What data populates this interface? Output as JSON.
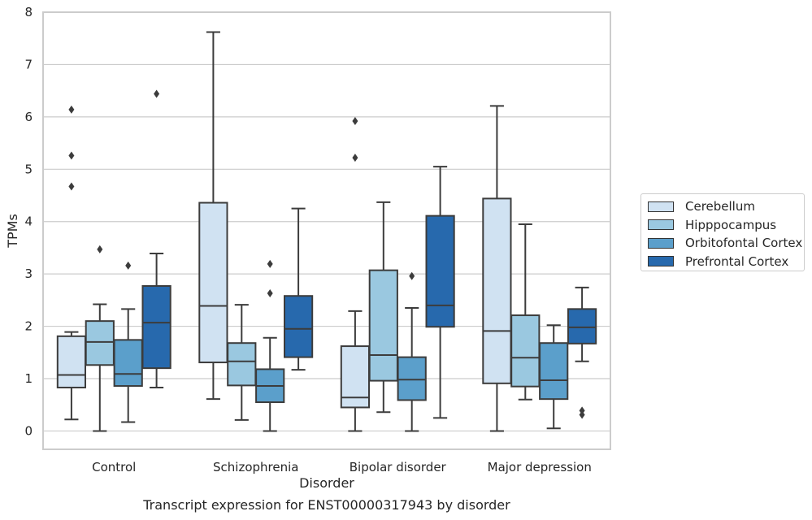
{
  "chart_data": {
    "type": "boxplot",
    "title": "",
    "caption": "Transcript expression for ENST00000317943 by disorder",
    "xlabel": "Disorder",
    "ylabel": "TPMs",
    "ylim": [
      -0.35,
      8.0
    ],
    "yticks": [
      0,
      1,
      2,
      3,
      4,
      5,
      6,
      7,
      8
    ],
    "grid": "horizontal",
    "legend_position": "right",
    "categories": [
      "Control",
      "Schizophrenia",
      "Bipolar disorder",
      "Major depression"
    ],
    "series": [
      {
        "name": "Cerebellum",
        "color": "#d0e2f2",
        "boxes": [
          {
            "whislo": 0.22,
            "q1": 0.83,
            "med": 1.07,
            "q3": 1.81,
            "whishi": 1.89,
            "fliers": [
              4.67,
              5.26,
              6.14
            ]
          },
          {
            "whislo": 0.61,
            "q1": 1.31,
            "med": 2.39,
            "q3": 4.36,
            "whishi": 7.62,
            "fliers": []
          },
          {
            "whislo": 0.0,
            "q1": 0.45,
            "med": 0.64,
            "q3": 1.62,
            "whishi": 2.29,
            "fliers": [
              5.22,
              5.92
            ]
          },
          {
            "whislo": 0.0,
            "q1": 0.91,
            "med": 1.91,
            "q3": 4.44,
            "whishi": 6.21,
            "fliers": []
          }
        ]
      },
      {
        "name": "Hipppocampus",
        "color": "#9ac8e0",
        "boxes": [
          {
            "whislo": 0.0,
            "q1": 1.26,
            "med": 1.7,
            "q3": 2.1,
            "whishi": 2.42,
            "fliers": [
              3.47
            ]
          },
          {
            "whislo": 0.21,
            "q1": 0.87,
            "med": 1.33,
            "q3": 1.68,
            "whishi": 2.41,
            "fliers": []
          },
          {
            "whislo": 0.36,
            "q1": 0.96,
            "med": 1.45,
            "q3": 3.07,
            "whishi": 4.37,
            "fliers": []
          },
          {
            "whislo": 0.6,
            "q1": 0.85,
            "med": 1.4,
            "q3": 2.21,
            "whishi": 3.95,
            "fliers": []
          }
        ]
      },
      {
        "name": "Orbitofontal Cortex",
        "color": "#5b9fcb",
        "boxes": [
          {
            "whislo": 0.17,
            "q1": 0.86,
            "med": 1.09,
            "q3": 1.74,
            "whishi": 2.33,
            "fliers": [
              3.16
            ]
          },
          {
            "whislo": 0.0,
            "q1": 0.55,
            "med": 0.86,
            "q3": 1.18,
            "whishi": 1.78,
            "fliers": [
              2.63,
              3.19
            ]
          },
          {
            "whislo": 0.0,
            "q1": 0.59,
            "med": 0.98,
            "q3": 1.41,
            "whishi": 2.35,
            "fliers": [
              2.96
            ]
          },
          {
            "whislo": 0.05,
            "q1": 0.61,
            "med": 0.97,
            "q3": 1.68,
            "whishi": 2.02,
            "fliers": []
          }
        ]
      },
      {
        "name": "Prefrontal Cortex",
        "color": "#2769ad",
        "boxes": [
          {
            "whislo": 0.83,
            "q1": 1.2,
            "med": 2.07,
            "q3": 2.77,
            "whishi": 3.39,
            "fliers": [
              6.44
            ]
          },
          {
            "whislo": 1.17,
            "q1": 1.41,
            "med": 1.95,
            "q3": 2.58,
            "whishi": 4.25,
            "fliers": []
          },
          {
            "whislo": 0.25,
            "q1": 1.99,
            "med": 2.4,
            "q3": 4.11,
            "whishi": 5.05,
            "fliers": []
          },
          {
            "whislo": 1.33,
            "q1": 1.67,
            "med": 1.98,
            "q3": 2.33,
            "whishi": 2.74,
            "fliers": [
              0.31,
              0.39
            ]
          }
        ]
      }
    ]
  }
}
